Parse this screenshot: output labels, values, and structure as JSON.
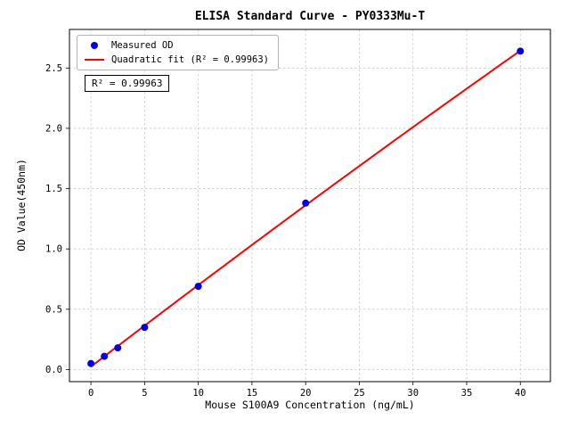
{
  "chart_data": {
    "type": "scatter",
    "title": "ELISA Standard Curve - PY0333Mu-T",
    "xlabel": "Mouse S100A9 Concentration (ng/mL)",
    "ylabel": "OD Value(450nm)",
    "xlim": [
      -2,
      42.8
    ],
    "ylim": [
      -0.1,
      2.82
    ],
    "xticks": [
      0,
      5,
      10,
      15,
      20,
      25,
      30,
      35,
      40
    ],
    "xtick_labels": [
      "0",
      "5",
      "10",
      "15",
      "20",
      "25",
      "30",
      "35",
      "40"
    ],
    "yticks": [
      0,
      0.5,
      1.0,
      1.5,
      2.0,
      2.5
    ],
    "ytick_labels": [
      "0.0",
      "0.5",
      "1.0",
      "1.5",
      "2.0",
      "2.5"
    ],
    "grid": true,
    "grid_color": "#c9c9c9",
    "axis_color": "#000000",
    "legend_position": "upper left",
    "series": [
      {
        "name": "Measured OD",
        "type": "scatter",
        "color": "#0000dd",
        "x": [
          0,
          1.25,
          2.5,
          5,
          10,
          20,
          40
        ],
        "y": [
          0.05,
          0.11,
          0.18,
          0.35,
          0.69,
          1.38,
          2.64
        ]
      },
      {
        "name": "Quadratic fit (R² = 0.99963)",
        "type": "quadratic_fit",
        "color": "#ff0000",
        "fit_of": "Measured OD",
        "x_range": [
          0,
          40
        ]
      }
    ],
    "annotation": "R² = 0.99963",
    "r_squared": 0.99963
  }
}
